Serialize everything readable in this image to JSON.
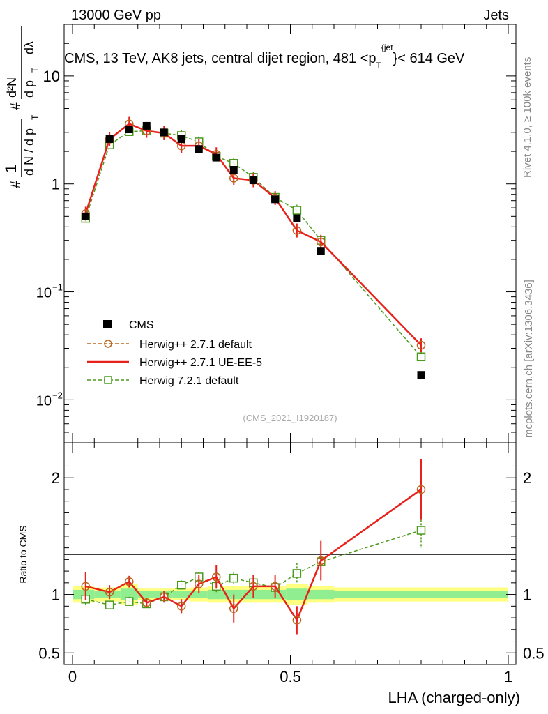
{
  "header": {
    "left": "13000 GeV pp",
    "right": "Jets"
  },
  "side_labels": {
    "rivet": "Rivet 4.1.0, ≥ 100k events",
    "mcplots": "mcplots.cern.ch [arXiv:1306.3436]"
  },
  "chart_data": {
    "type": "line",
    "title": "CMS, 13 TeV, AK8 jets, central dijet region, 481 < p_T^{jet} < 614 GeV",
    "title_parts": {
      "main": "CMS, 13 TeV, AK8 jets, central dijet region, 481 <p",
      "sub": "T",
      "sup": "{jet",
      "end": "}< 614 GeV"
    },
    "xlabel": "LHA (charged-only)",
    "ylabel": "1/dN/dp_T  d²N/dp_T dλ",
    "ylabel_parts": {
      "hash": "#",
      "one": "1",
      "dN": "d N / d p",
      "T": "T",
      "d2N": "d²N",
      "dp": "d p",
      "dlambda": "dλ"
    },
    "xlim": [
      0,
      1
    ],
    "ylim": [
      0.004,
      30
    ],
    "yscale": "log",
    "xticks": [
      "0",
      "0.5",
      "1"
    ],
    "yticks": [
      {
        "value": 0.01,
        "base": "10",
        "exp": "−2"
      },
      {
        "value": 0.1,
        "base": "10",
        "exp": "−1"
      },
      {
        "value": 1,
        "label": "1"
      },
      {
        "value": 10,
        "label": "10"
      }
    ],
    "watermark": "(CMS_2021_I1920187)",
    "x": [
      0.03,
      0.085,
      0.13,
      0.17,
      0.21,
      0.25,
      0.29,
      0.33,
      0.37,
      0.415,
      0.465,
      0.515,
      0.57,
      0.8
    ],
    "x_edges": [
      0,
      0.05,
      0.11,
      0.15,
      0.19,
      0.23,
      0.27,
      0.31,
      0.35,
      0.39,
      0.44,
      0.49,
      0.54,
      0.6,
      1.0
    ],
    "series": [
      {
        "name": "CMS",
        "style": "data",
        "color": "#000000",
        "values": [
          0.5,
          2.6,
          3.2,
          3.45,
          3.0,
          2.6,
          2.1,
          1.75,
          1.35,
          1.08,
          0.72,
          0.48,
          0.24,
          0.017
        ]
      },
      {
        "name": "Herwig++ 2.7.1 default",
        "style": "dashed-circle",
        "color": "#b8661d",
        "values": [
          0.53,
          2.6,
          3.6,
          3.1,
          2.95,
          2.25,
          2.25,
          1.88,
          1.13,
          1.08,
          0.74,
          0.37,
          0.29,
          0.032
        ]
      },
      {
        "name": "Herwig++ 2.7.1 UE-EE-5",
        "style": "solid",
        "color": "#e8211a",
        "values": [
          0.53,
          2.6,
          3.6,
          3.1,
          2.95,
          2.25,
          2.25,
          1.88,
          1.13,
          1.08,
          0.74,
          0.37,
          0.29,
          0.032
        ],
        "ratio": [
          1.07,
          1.02,
          1.11,
          0.93,
          0.98,
          0.9,
          1.09,
          1.15,
          0.88,
          1.07,
          1.07,
          0.78,
          1.29,
          1.9
        ],
        "ratio_err": [
          0.12,
          0.06,
          0.05,
          0.04,
          0.05,
          0.06,
          0.08,
          0.1,
          0.12,
          0.1,
          0.1,
          0.12,
          0.17,
          0.26
        ]
      },
      {
        "name": "Herwig 7.2.1 default",
        "style": "dashed-square",
        "color": "#4a9a1c",
        "values": [
          0.48,
          2.3,
          3.05,
          3.1,
          2.95,
          2.8,
          2.45,
          1.8,
          1.55,
          1.15,
          0.75,
          0.57,
          0.3,
          0.025
        ],
        "ratio": [
          0.96,
          0.91,
          0.94,
          0.92,
          0.98,
          1.08,
          1.15,
          1.07,
          1.14,
          1.1,
          1.06,
          1.18,
          1.28,
          1.55
        ],
        "ratio_err": [
          0.06,
          0.03,
          0.04,
          0.03,
          0.04,
          0.04,
          0.04,
          0.05,
          0.05,
          0.06,
          0.07,
          0.09,
          0.12,
          0.15
        ]
      }
    ],
    "ratio_panel": {
      "ylabel": "Ratio to CMS",
      "ylim": [
        0.4,
        2.3
      ],
      "yticks": [
        {
          "value": 0.5,
          "label": "0.5"
        },
        {
          "value": 1,
          "label": "1"
        },
        {
          "value": 2,
          "label": "2"
        }
      ],
      "band_yellow": [
        0.07,
        0.06,
        0.09,
        0.05,
        0.05,
        0.05,
        0.06,
        0.07,
        0.07,
        0.07,
        0.07,
        0.09,
        0.07,
        0.06
      ],
      "band_green": [
        0.04,
        0.03,
        0.05,
        0.03,
        0.03,
        0.03,
        0.03,
        0.04,
        0.04,
        0.04,
        0.04,
        0.05,
        0.04,
        0.03
      ]
    }
  }
}
